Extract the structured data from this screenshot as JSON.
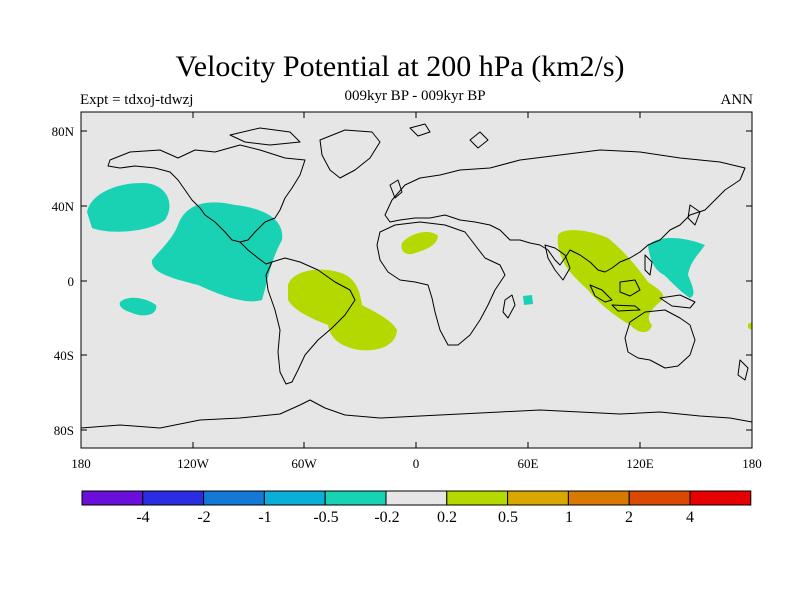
{
  "title": "Velocity Potential at 200 hPa (km2/s)",
  "subtitle": "009kyr BP - 009kyr BP",
  "left_string": "Expt = tdxoj-tdwzj",
  "right_string": "ANN",
  "map": {
    "projection": "cylindrical-equidistant",
    "lon_range": [
      180,
      -180
    ],
    "lat_range": [
      -90,
      90
    ],
    "ocean_land_fill": "#e6e6e6",
    "lat_labels": [
      "80N",
      "40N",
      "0",
      "40S",
      "80S"
    ],
    "lon_labels": [
      "180",
      "120W",
      "60W",
      "0",
      "60E",
      "120E",
      "180"
    ]
  },
  "contour_colors": {
    "negative_small": "#19d2b4",
    "positive_small": "#b3d900"
  },
  "colorbar": {
    "colors": [
      "#6a0fd9",
      "#2a2ee0",
      "#1577d6",
      "#0aaed8",
      "#19d2b4",
      "#e6e6e6",
      "#b3d900",
      "#d9a800",
      "#d97a00",
      "#d94a00",
      "#e60000"
    ],
    "labels": [
      "-4",
      "-2",
      "-1",
      "-0.5",
      "-0.2",
      "0.2",
      "0.5",
      "1",
      "2",
      "4"
    ]
  }
}
